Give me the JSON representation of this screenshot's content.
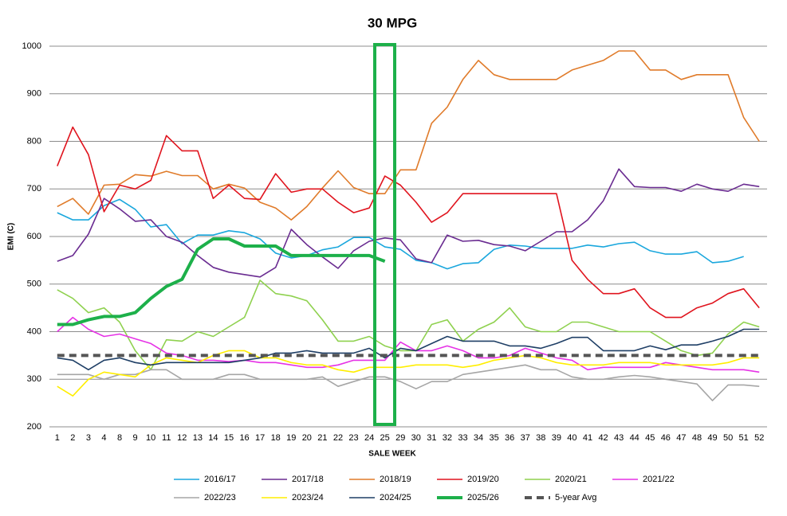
{
  "chart_data": {
    "type": "line",
    "title": "30 MPG",
    "x_label": "SALE WEEK",
    "y_label": "EMI (C)",
    "categories": [
      "1",
      "2",
      "3",
      "4",
      "8",
      "9",
      "10",
      "11",
      "12",
      "13",
      "14",
      "15",
      "16",
      "17",
      "18",
      "19",
      "20",
      "21",
      "22",
      "23",
      "24",
      "25",
      "29",
      "30",
      "31",
      "32",
      "33",
      "34",
      "35",
      "36",
      "37",
      "38",
      "39",
      "40",
      "41",
      "42",
      "43",
      "44",
      "45",
      "46",
      "47",
      "48",
      "49",
      "50",
      "51",
      "52"
    ],
    "ylim": [
      200,
      1000
    ],
    "yticks": [
      200,
      300,
      400,
      500,
      600,
      700,
      800,
      900,
      1000
    ],
    "grid": true,
    "legend": "bottom",
    "series": [
      {
        "name": "2016/17",
        "color": "#1aa7dd",
        "values": [
          650,
          635,
          635,
          665,
          678,
          657,
          620,
          625,
          585,
          603,
          603,
          612,
          608,
          595,
          565,
          555,
          560,
          572,
          578,
          598,
          598,
          578,
          573,
          550,
          545,
          532,
          543,
          545,
          573,
          582,
          580,
          575,
          575,
          575,
          582,
          578,
          585,
          588,
          570,
          563,
          563,
          568,
          545,
          548,
          558,
          null
        ]
      },
      {
        "name": "2017/18",
        "color": "#6a2c91",
        "values": [
          548,
          560,
          605,
          680,
          658,
          632,
          635,
          600,
          588,
          560,
          535,
          525,
          520,
          515,
          535,
          615,
          583,
          557,
          533,
          570,
          590,
          597,
          593,
          553,
          545,
          603,
          590,
          592,
          583,
          580,
          570,
          590,
          610,
          610,
          635,
          675,
          742,
          705,
          703,
          703,
          695,
          710,
          700,
          695,
          710,
          705
        ]
      },
      {
        "name": "2018/19",
        "color": "#e07b2a",
        "values": [
          663,
          680,
          647,
          708,
          710,
          730,
          727,
          737,
          728,
          728,
          700,
          710,
          702,
          672,
          660,
          635,
          663,
          702,
          738,
          703,
          690,
          690,
          740,
          740,
          838,
          872,
          930,
          970,
          940,
          930,
          930,
          930,
          930,
          950,
          960,
          970,
          990,
          990,
          950,
          950,
          930,
          940,
          940,
          940,
          850,
          800
        ]
      },
      {
        "name": "2019/20",
        "color": "#e0141e",
        "values": [
          748,
          830,
          772,
          652,
          708,
          700,
          718,
          812,
          780,
          780,
          680,
          708,
          680,
          678,
          732,
          693,
          700,
          700,
          672,
          650,
          660,
          727,
          708,
          672,
          630,
          650,
          690,
          690,
          690,
          690,
          690,
          690,
          690,
          550,
          510,
          480,
          480,
          490,
          450,
          430,
          430,
          450,
          460,
          480,
          490,
          450
        ]
      },
      {
        "name": "2020/21",
        "color": "#8fd14f",
        "values": [
          488,
          470,
          440,
          450,
          420,
          360,
          320,
          383,
          380,
          400,
          390,
          410,
          430,
          508,
          480,
          475,
          465,
          425,
          380,
          380,
          390,
          370,
          360,
          360,
          415,
          425,
          380,
          405,
          420,
          450,
          410,
          400,
          400,
          420,
          420,
          410,
          400,
          400,
          400,
          380,
          360,
          350,
          355,
          395,
          420,
          410
        ]
      },
      {
        "name": "2021/22",
        "color": "#e632e6",
        "values": [
          400,
          430,
          405,
          390,
          395,
          385,
          375,
          355,
          350,
          340,
          340,
          337,
          340,
          335,
          335,
          330,
          325,
          325,
          330,
          340,
          340,
          340,
          378,
          360,
          360,
          370,
          360,
          345,
          345,
          350,
          365,
          355,
          345,
          340,
          320,
          325,
          325,
          325,
          325,
          335,
          330,
          325,
          320,
          320,
          320,
          315
        ]
      },
      {
        "name": "2022/23",
        "color": "#a6a6a6",
        "values": [
          310,
          310,
          310,
          300,
          310,
          310,
          320,
          320,
          300,
          300,
          300,
          310,
          310,
          300,
          300,
          300,
          300,
          305,
          285,
          295,
          305,
          305,
          295,
          280,
          295,
          295,
          310,
          315,
          320,
          325,
          330,
          320,
          320,
          305,
          300,
          300,
          305,
          308,
          305,
          300,
          295,
          290,
          255,
          288,
          288,
          285
        ]
      },
      {
        "name": "2023/24",
        "color": "#ffee00",
        "values": [
          285,
          265,
          300,
          315,
          310,
          305,
          330,
          345,
          340,
          335,
          350,
          360,
          360,
          345,
          345,
          335,
          330,
          330,
          320,
          315,
          325,
          325,
          325,
          330,
          330,
          330,
          325,
          330,
          340,
          345,
          350,
          345,
          335,
          330,
          330,
          330,
          335,
          335,
          335,
          330,
          330,
          330,
          330,
          335,
          345,
          345
        ]
      },
      {
        "name": "2024/25",
        "color": "#1f3f66",
        "values": [
          345,
          340,
          320,
          340,
          345,
          335,
          330,
          335,
          335,
          335,
          335,
          335,
          340,
          345,
          355,
          355,
          360,
          355,
          355,
          355,
          365,
          345,
          365,
          360,
          375,
          390,
          380,
          380,
          380,
          370,
          370,
          365,
          375,
          388,
          388,
          360,
          360,
          360,
          370,
          362,
          372,
          372,
          380,
          390,
          405,
          405
        ]
      },
      {
        "name": "2025/26",
        "color": "#1db04a",
        "line_width": 4,
        "values": [
          415,
          415,
          425,
          432,
          432,
          440,
          470,
          495,
          510,
          573,
          595,
          595,
          580,
          580,
          580,
          560,
          560,
          560,
          560,
          560,
          560,
          548,
          null,
          null,
          null,
          null,
          null,
          null,
          null,
          null,
          null,
          null,
          null,
          null,
          null,
          null,
          null,
          null,
          null,
          null,
          null,
          null,
          null,
          null,
          null,
          null
        ]
      },
      {
        "name": "5-year Avg",
        "color": "#555555",
        "line_width": 4,
        "dashed": true,
        "values": [
          350,
          350,
          350,
          350,
          350,
          350,
          350,
          350,
          350,
          350,
          350,
          350,
          350,
          350,
          350,
          350,
          350,
          350,
          350,
          350,
          350,
          350,
          350,
          350,
          350,
          350,
          350,
          350,
          350,
          350,
          350,
          350,
          350,
          350,
          350,
          350,
          350,
          350,
          350,
          350,
          350,
          350,
          350,
          350,
          350,
          350
        ]
      }
    ]
  }
}
